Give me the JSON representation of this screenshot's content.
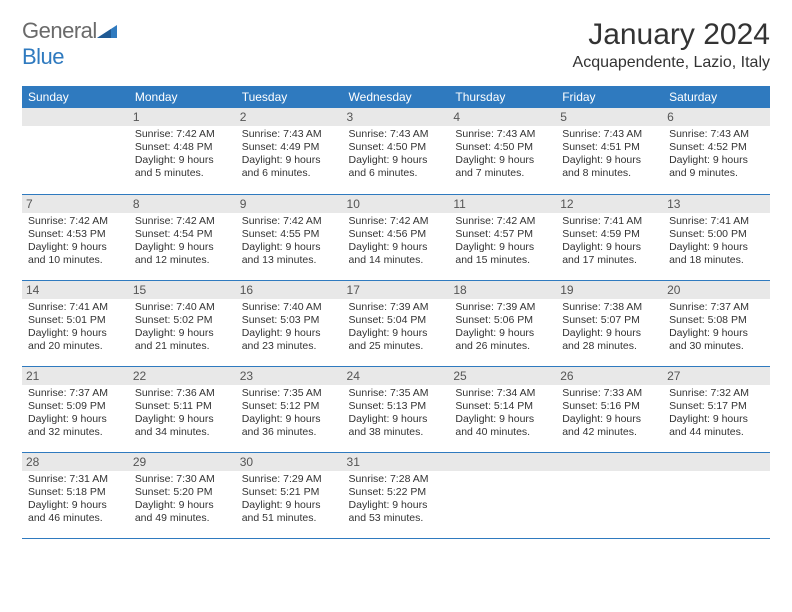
{
  "logo": {
    "first": "General",
    "second": "Blue"
  },
  "title": "January 2024",
  "location": "Acquapendente, Lazio, Italy",
  "colors": {
    "header_bg": "#2f7abf",
    "header_text": "#ffffff",
    "daynum_bg": "#e8e8e8",
    "rule": "#2f7abf",
    "text": "#333333",
    "logo_gray": "#6a6a6a",
    "logo_blue": "#2f7abf",
    "background": "#ffffff"
  },
  "typography": {
    "title_fontsize": 30,
    "location_fontsize": 16,
    "dayhead_fontsize": 12,
    "daynum_fontsize": 12,
    "info_fontsize": 10.5,
    "logo_fontsize": 22
  },
  "day_names": [
    "Sunday",
    "Monday",
    "Tuesday",
    "Wednesday",
    "Thursday",
    "Friday",
    "Saturday"
  ],
  "weeks": [
    [
      null,
      {
        "n": "1",
        "sunrise": "Sunrise: 7:42 AM",
        "sunset": "Sunset: 4:48 PM",
        "d1": "Daylight: 9 hours",
        "d2": "and 5 minutes."
      },
      {
        "n": "2",
        "sunrise": "Sunrise: 7:43 AM",
        "sunset": "Sunset: 4:49 PM",
        "d1": "Daylight: 9 hours",
        "d2": "and 6 minutes."
      },
      {
        "n": "3",
        "sunrise": "Sunrise: 7:43 AM",
        "sunset": "Sunset: 4:50 PM",
        "d1": "Daylight: 9 hours",
        "d2": "and 6 minutes."
      },
      {
        "n": "4",
        "sunrise": "Sunrise: 7:43 AM",
        "sunset": "Sunset: 4:50 PM",
        "d1": "Daylight: 9 hours",
        "d2": "and 7 minutes."
      },
      {
        "n": "5",
        "sunrise": "Sunrise: 7:43 AM",
        "sunset": "Sunset: 4:51 PM",
        "d1": "Daylight: 9 hours",
        "d2": "and 8 minutes."
      },
      {
        "n": "6",
        "sunrise": "Sunrise: 7:43 AM",
        "sunset": "Sunset: 4:52 PM",
        "d1": "Daylight: 9 hours",
        "d2": "and 9 minutes."
      }
    ],
    [
      {
        "n": "7",
        "sunrise": "Sunrise: 7:42 AM",
        "sunset": "Sunset: 4:53 PM",
        "d1": "Daylight: 9 hours",
        "d2": "and 10 minutes."
      },
      {
        "n": "8",
        "sunrise": "Sunrise: 7:42 AM",
        "sunset": "Sunset: 4:54 PM",
        "d1": "Daylight: 9 hours",
        "d2": "and 12 minutes."
      },
      {
        "n": "9",
        "sunrise": "Sunrise: 7:42 AM",
        "sunset": "Sunset: 4:55 PM",
        "d1": "Daylight: 9 hours",
        "d2": "and 13 minutes."
      },
      {
        "n": "10",
        "sunrise": "Sunrise: 7:42 AM",
        "sunset": "Sunset: 4:56 PM",
        "d1": "Daylight: 9 hours",
        "d2": "and 14 minutes."
      },
      {
        "n": "11",
        "sunrise": "Sunrise: 7:42 AM",
        "sunset": "Sunset: 4:57 PM",
        "d1": "Daylight: 9 hours",
        "d2": "and 15 minutes."
      },
      {
        "n": "12",
        "sunrise": "Sunrise: 7:41 AM",
        "sunset": "Sunset: 4:59 PM",
        "d1": "Daylight: 9 hours",
        "d2": "and 17 minutes."
      },
      {
        "n": "13",
        "sunrise": "Sunrise: 7:41 AM",
        "sunset": "Sunset: 5:00 PM",
        "d1": "Daylight: 9 hours",
        "d2": "and 18 minutes."
      }
    ],
    [
      {
        "n": "14",
        "sunrise": "Sunrise: 7:41 AM",
        "sunset": "Sunset: 5:01 PM",
        "d1": "Daylight: 9 hours",
        "d2": "and 20 minutes."
      },
      {
        "n": "15",
        "sunrise": "Sunrise: 7:40 AM",
        "sunset": "Sunset: 5:02 PM",
        "d1": "Daylight: 9 hours",
        "d2": "and 21 minutes."
      },
      {
        "n": "16",
        "sunrise": "Sunrise: 7:40 AM",
        "sunset": "Sunset: 5:03 PM",
        "d1": "Daylight: 9 hours",
        "d2": "and 23 minutes."
      },
      {
        "n": "17",
        "sunrise": "Sunrise: 7:39 AM",
        "sunset": "Sunset: 5:04 PM",
        "d1": "Daylight: 9 hours",
        "d2": "and 25 minutes."
      },
      {
        "n": "18",
        "sunrise": "Sunrise: 7:39 AM",
        "sunset": "Sunset: 5:06 PM",
        "d1": "Daylight: 9 hours",
        "d2": "and 26 minutes."
      },
      {
        "n": "19",
        "sunrise": "Sunrise: 7:38 AM",
        "sunset": "Sunset: 5:07 PM",
        "d1": "Daylight: 9 hours",
        "d2": "and 28 minutes."
      },
      {
        "n": "20",
        "sunrise": "Sunrise: 7:37 AM",
        "sunset": "Sunset: 5:08 PM",
        "d1": "Daylight: 9 hours",
        "d2": "and 30 minutes."
      }
    ],
    [
      {
        "n": "21",
        "sunrise": "Sunrise: 7:37 AM",
        "sunset": "Sunset: 5:09 PM",
        "d1": "Daylight: 9 hours",
        "d2": "and 32 minutes."
      },
      {
        "n": "22",
        "sunrise": "Sunrise: 7:36 AM",
        "sunset": "Sunset: 5:11 PM",
        "d1": "Daylight: 9 hours",
        "d2": "and 34 minutes."
      },
      {
        "n": "23",
        "sunrise": "Sunrise: 7:35 AM",
        "sunset": "Sunset: 5:12 PM",
        "d1": "Daylight: 9 hours",
        "d2": "and 36 minutes."
      },
      {
        "n": "24",
        "sunrise": "Sunrise: 7:35 AM",
        "sunset": "Sunset: 5:13 PM",
        "d1": "Daylight: 9 hours",
        "d2": "and 38 minutes."
      },
      {
        "n": "25",
        "sunrise": "Sunrise: 7:34 AM",
        "sunset": "Sunset: 5:14 PM",
        "d1": "Daylight: 9 hours",
        "d2": "and 40 minutes."
      },
      {
        "n": "26",
        "sunrise": "Sunrise: 7:33 AM",
        "sunset": "Sunset: 5:16 PM",
        "d1": "Daylight: 9 hours",
        "d2": "and 42 minutes."
      },
      {
        "n": "27",
        "sunrise": "Sunrise: 7:32 AM",
        "sunset": "Sunset: 5:17 PM",
        "d1": "Daylight: 9 hours",
        "d2": "and 44 minutes."
      }
    ],
    [
      {
        "n": "28",
        "sunrise": "Sunrise: 7:31 AM",
        "sunset": "Sunset: 5:18 PM",
        "d1": "Daylight: 9 hours",
        "d2": "and 46 minutes."
      },
      {
        "n": "29",
        "sunrise": "Sunrise: 7:30 AM",
        "sunset": "Sunset: 5:20 PM",
        "d1": "Daylight: 9 hours",
        "d2": "and 49 minutes."
      },
      {
        "n": "30",
        "sunrise": "Sunrise: 7:29 AM",
        "sunset": "Sunset: 5:21 PM",
        "d1": "Daylight: 9 hours",
        "d2": "and 51 minutes."
      },
      {
        "n": "31",
        "sunrise": "Sunrise: 7:28 AM",
        "sunset": "Sunset: 5:22 PM",
        "d1": "Daylight: 9 hours",
        "d2": "and 53 minutes."
      },
      null,
      null,
      null
    ]
  ]
}
